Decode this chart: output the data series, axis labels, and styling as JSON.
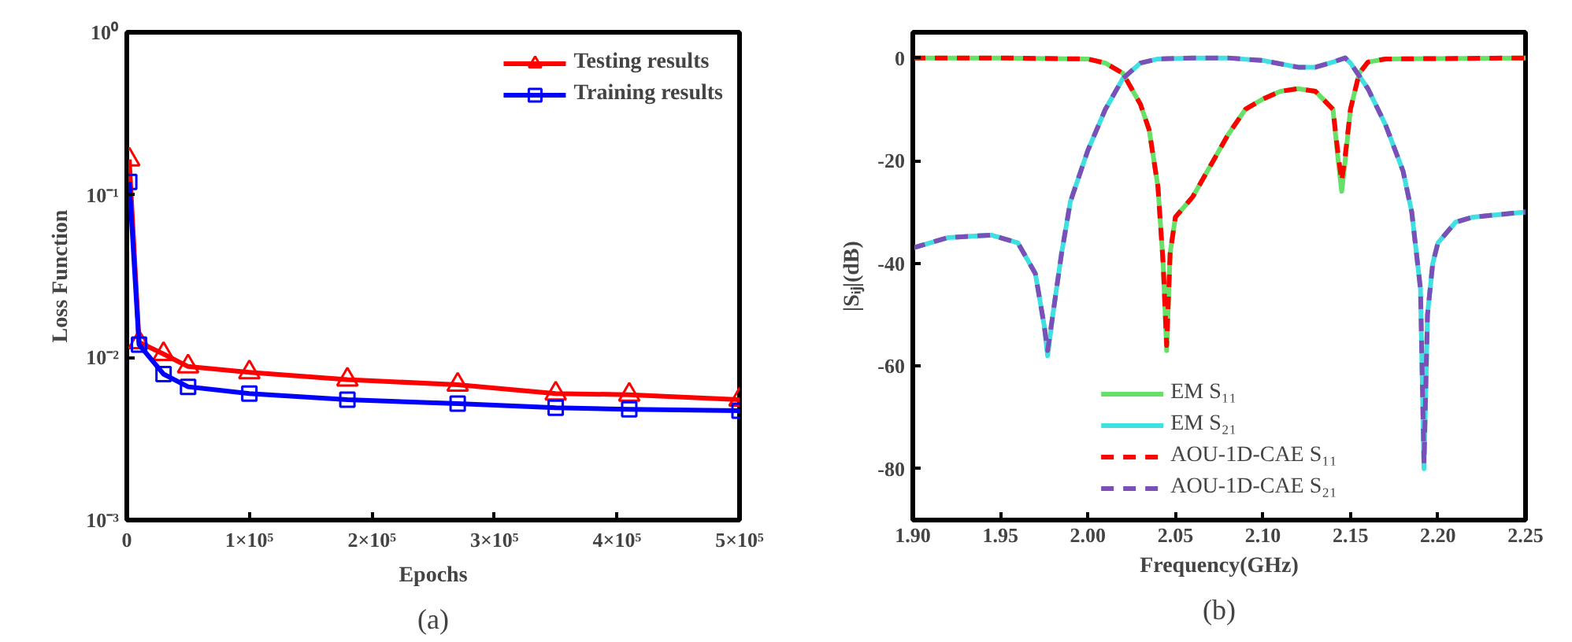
{
  "chart_data": [
    {
      "type": "line",
      "xlabel": "Epochs",
      "ylabel": "Loss Function",
      "annotations": [
        "(a)"
      ],
      "log": "y",
      "grid": false,
      "legend": "top right",
      "line_style": "solid",
      "x": [
        2000,
        10000,
        30000,
        50000,
        100000,
        180000,
        270000,
        350000,
        410000,
        500000
      ],
      "xlim": [
        0,
        500000
      ],
      "ylim": [
        0.001,
        1
      ],
      "xticks": [
        0,
        {
          "value": 100000,
          "label": "1×10⁵"
        },
        {
          "value": 200000,
          "label": "2×10⁵"
        },
        {
          "value": 300000,
          "label": "3×10⁵"
        },
        {
          "value": 400000,
          "label": "4×10⁵"
        },
        {
          "value": 500000,
          "label": "5×10⁵"
        }
      ],
      "yticks": [
        {
          "value": 0.001,
          "label": "10⁻³"
        },
        {
          "value": 0.01,
          "label": "10⁻²"
        },
        {
          "value": 0.1,
          "label": "10⁻¹"
        },
        {
          "value": 1,
          "label": "10⁰"
        }
      ],
      "series": [
        {
          "name": "Testing results",
          "color": "#ff0000",
          "marker": "triangle",
          "values": [
            0.165,
            0.0124,
            0.0105,
            0.0088,
            0.0081,
            0.0073,
            0.0068,
            0.006,
            0.0059,
            0.0055
          ]
        },
        {
          "name": "Training results",
          "color": "#0000ff",
          "marker": "square",
          "values": [
            0.12,
            0.012,
            0.0079,
            0.0066,
            0.006,
            0.0055,
            0.0052,
            0.0049,
            0.0048,
            0.0047
          ]
        }
      ]
    },
    {
      "type": "line",
      "xlabel": "Frequency(GHz)",
      "ylabel": "|Sᵢⱼ|(dB)",
      "annotations": [
        "(b)"
      ],
      "grid": false,
      "legend": "bottom",
      "marker": "none",
      "xlim": [
        1.9,
        2.25
      ],
      "ylim": [
        -90,
        5
      ],
      "xticks": [
        {
          "value": 1.9,
          "label": "1.90"
        },
        1.95,
        {
          "value": 2.0,
          "label": "2.00"
        },
        2.05,
        {
          "value": 2.1,
          "label": "2.10"
        },
        2.15,
        {
          "value": 2.2,
          "label": "2.20"
        },
        2.25
      ],
      "yticks": [
        -80,
        -60,
        -40,
        -20,
        0
      ],
      "series": [
        {
          "name": "EM S₁₁",
          "color": "#66e066",
          "line_style": "solid",
          "x": [
            1.9,
            1.95,
            2.0,
            2.01,
            2.02,
            2.03,
            2.035,
            2.04,
            2.043,
            2.045,
            2.047,
            2.05,
            2.06,
            2.07,
            2.08,
            2.09,
            2.1,
            2.11,
            2.12,
            2.13,
            2.14,
            2.143,
            2.145,
            2.147,
            2.15,
            2.155,
            2.16,
            2.17,
            2.25
          ],
          "values": [
            0,
            0,
            -0.2,
            -1,
            -3,
            -9,
            -14,
            -25,
            -40,
            -57,
            -38,
            -31,
            -27,
            -21,
            -15,
            -10,
            -8,
            -6.5,
            -6,
            -6.5,
            -10,
            -20,
            -26,
            -20,
            -10,
            -3,
            -0.8,
            -0.2,
            0
          ]
        },
        {
          "name": "EM S₂₁",
          "color": "#40e0e0",
          "line_style": "solid",
          "x": [
            1.9,
            1.92,
            1.945,
            1.96,
            1.97,
            1.975,
            1.977,
            1.98,
            1.985,
            1.99,
            2.0,
            2.01,
            2.02,
            2.03,
            2.04,
            2.06,
            2.08,
            2.1,
            2.12,
            2.13,
            2.14,
            2.147,
            2.15,
            2.16,
            2.17,
            2.18,
            2.185,
            2.19,
            2.192,
            2.194,
            2.197,
            2.2,
            2.21,
            2.22,
            2.25
          ],
          "values": [
            -37,
            -35,
            -34.5,
            -36,
            -42,
            -52,
            -58,
            -50,
            -38,
            -28,
            -18,
            -10,
            -4,
            -1,
            -0.2,
            0,
            0,
            -0.5,
            -1.8,
            -1.8,
            -0.8,
            0,
            -1,
            -6,
            -13,
            -22,
            -30,
            -45,
            -80,
            -50,
            -40,
            -36,
            -32,
            -31,
            -30
          ]
        },
        {
          "name": "AOU-1D-CAE S₁₁",
          "color": "#ff0000",
          "line_style": "dashed",
          "x": [
            1.9,
            1.95,
            2.0,
            2.01,
            2.02,
            2.03,
            2.035,
            2.04,
            2.043,
            2.045,
            2.047,
            2.05,
            2.06,
            2.07,
            2.08,
            2.09,
            2.1,
            2.11,
            2.12,
            2.13,
            2.14,
            2.143,
            2.145,
            2.147,
            2.15,
            2.155,
            2.16,
            2.17,
            2.25
          ],
          "values": [
            0,
            0,
            -0.2,
            -1,
            -3,
            -9,
            -14,
            -25,
            -40,
            -56,
            -38,
            -31,
            -27,
            -21,
            -15,
            -10,
            -8,
            -6.5,
            -6,
            -6.5,
            -10,
            -19,
            -24,
            -19,
            -10,
            -3,
            -0.8,
            -0.2,
            0
          ]
        },
        {
          "name": "AOU-1D-CAE S₂₁",
          "color": "#7b4fb8",
          "line_style": "dashed",
          "x": [
            1.9,
            1.92,
            1.945,
            1.96,
            1.97,
            1.975,
            1.977,
            1.98,
            1.985,
            1.99,
            2.0,
            2.01,
            2.02,
            2.03,
            2.04,
            2.06,
            2.08,
            2.1,
            2.12,
            2.13,
            2.14,
            2.147,
            2.15,
            2.16,
            2.17,
            2.18,
            2.185,
            2.19,
            2.192,
            2.194,
            2.197,
            2.2,
            2.21,
            2.22,
            2.25
          ],
          "values": [
            -37,
            -35,
            -34.5,
            -36,
            -42,
            -52,
            -57,
            -50,
            -38,
            -28,
            -18,
            -10,
            -4,
            -1,
            -0.2,
            0,
            0,
            -0.5,
            -1.8,
            -1.8,
            -0.8,
            0,
            -1,
            -6,
            -13,
            -22,
            -30,
            -45,
            -79,
            -50,
            -40,
            -36,
            -32,
            -31,
            -30
          ]
        }
      ]
    }
  ]
}
